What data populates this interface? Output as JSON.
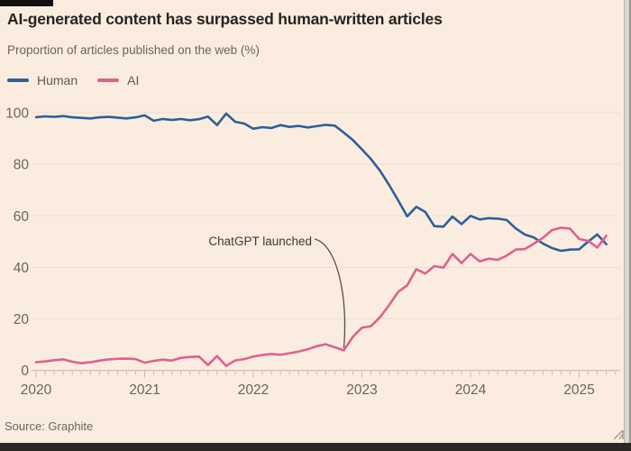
{
  "header": {
    "title": "AI-generated content has surpassed human-written articles",
    "subtitle": "Proportion of articles published on the web (%)"
  },
  "legend": {
    "items": [
      {
        "label": "Human",
        "color": "#2e5f9a"
      },
      {
        "label": "AI",
        "color": "#df618e"
      }
    ]
  },
  "footer": {
    "source": "Source: Graphite"
  },
  "theme": {
    "background": "#faede0",
    "human_blue": "#2e5f9a",
    "ai_pink": "#df618e",
    "grid_line": "#eddfd1",
    "axis_line": "#c6b9ab",
    "axis_text": "#6b655f",
    "title_text": "#27241f",
    "annotation_text": "#3e3935",
    "annotation_line": "#55504b"
  },
  "chart_data": {
    "type": "line",
    "title": "AI-generated content has surpassed human-written articles",
    "subtitle": "Proportion of articles published on the web (%)",
    "ylabel": "Proportion of articles published on the web (%)",
    "x_unit": "month",
    "x_start": "2020-01",
    "x_end": "2025-04",
    "x_tick_labels": [
      "2020",
      "2021",
      "2022",
      "2023",
      "2024",
      "2025"
    ],
    "yticks": [
      0,
      20,
      40,
      60,
      80,
      100
    ],
    "ylim": [
      0,
      100
    ],
    "grid": "horizontal",
    "legend_position": "top-left",
    "annotation": {
      "text": "ChatGPT launched",
      "series": "AI",
      "x_index": 34,
      "x_label": "2022-11"
    },
    "series": [
      {
        "name": "Human",
        "color": "#2e5f9a",
        "values": [
          98.3,
          98.6,
          98.4,
          98.7,
          98.2,
          98.0,
          97.8,
          98.2,
          98.4,
          98.1,
          97.8,
          98.2,
          99.0,
          96.9,
          97.6,
          97.2,
          97.6,
          97.1,
          97.5,
          98.5,
          95.2,
          99.7,
          96.5,
          95.8,
          93.8,
          94.4,
          94.1,
          95.2,
          94.5,
          94.9,
          94.3,
          94.8,
          95.3,
          95.0,
          92.3,
          89.4,
          85.8,
          82.0,
          77.5,
          72.0,
          66.0,
          59.8,
          63.5,
          61.5,
          56.0,
          55.8,
          59.7,
          56.8,
          60.0,
          58.6,
          59.1,
          58.9,
          58.4,
          55.1,
          52.7,
          51.6,
          49.2,
          47.5,
          46.4,
          46.9,
          47.0,
          50.0,
          52.8,
          49.0
        ]
      },
      {
        "name": "AI",
        "color": "#df618e",
        "values": [
          3.2,
          3.5,
          4.0,
          4.3,
          3.4,
          2.8,
          3.2,
          3.8,
          4.3,
          4.5,
          4.6,
          4.4,
          3.0,
          3.7,
          4.2,
          3.8,
          4.9,
          5.2,
          5.4,
          2.1,
          5.6,
          1.8,
          3.9,
          4.4,
          5.4,
          6.0,
          6.4,
          6.1,
          6.7,
          7.3,
          8.2,
          9.4,
          10.2,
          9.0,
          7.8,
          13.1,
          16.6,
          17.2,
          20.7,
          25.3,
          30.5,
          33.0,
          39.3,
          37.6,
          40.5,
          39.9,
          45.2,
          41.7,
          45.2,
          42.3,
          43.4,
          42.9,
          44.6,
          46.9,
          47.1,
          49.2,
          51.5,
          54.5,
          55.4,
          55.0,
          51.0,
          50.3,
          47.7,
          52.3
        ]
      }
    ]
  }
}
